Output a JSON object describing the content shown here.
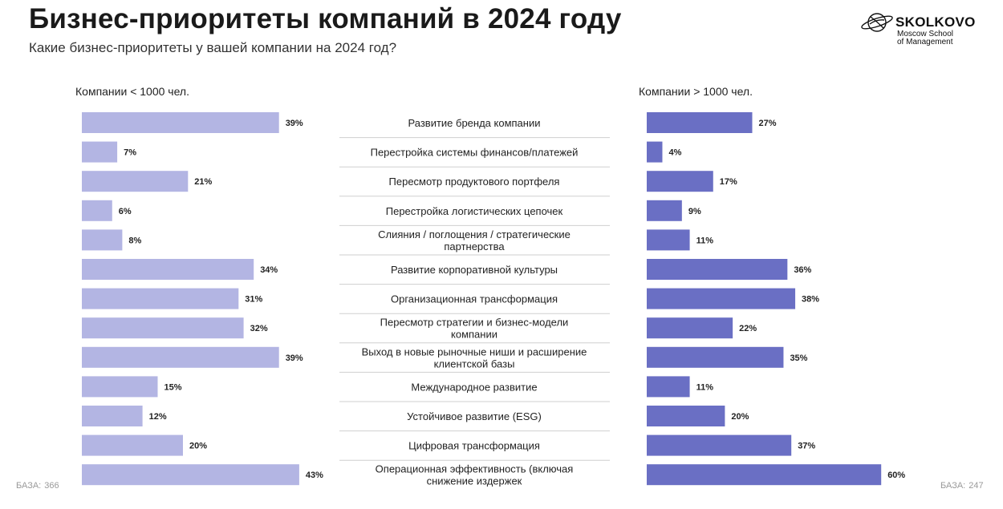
{
  "header": {
    "title": "Бизнес-приоритеты компаний в 2024 году",
    "subtitle": "Какие бизнес-приоритеты у вашей компании на 2024 год?"
  },
  "logo": {
    "name": "SKOLKOVO",
    "line1": "Moscow School",
    "line2": "of Management"
  },
  "footer": {
    "left_label": "БАЗА:",
    "left_value": "366",
    "right_label": "БАЗА:",
    "right_value": "247"
  },
  "colors": {
    "left_bar": "#b3b5e3",
    "right_bar": "#6a6fc4",
    "divider": "#cfcfcf"
  },
  "chart_data": {
    "type": "bar",
    "title": "Бизнес-приоритеты компаний в 2024 году",
    "orientation": "horizontal",
    "value_suffix": "%",
    "categories": [
      "Развитие бренда компании",
      "Перестройка системы финансов/платежей",
      "Пересмотр продуктового портфеля",
      "Перестройка логистических цепочек",
      "Слияния / поглощения / стратегические партнерства",
      "Развитие корпоративной культуры",
      "Организационная трансформация",
      "Пересмотр стратегии и бизнес-модели компании",
      "Выход в новые рыночные ниши и расширение клиентской базы",
      "Международное развитие",
      "Устойчивое развитие (ESG)",
      "Цифровая трансформация",
      "Операционная эффективность (включая снижение издержек"
    ],
    "category_lines": [
      [
        "Развитие бренда компании"
      ],
      [
        "Перестройка системы финансов/платежей"
      ],
      [
        "Пересмотр продуктового портфеля"
      ],
      [
        "Перестройка логистических цепочек"
      ],
      [
        "Слияния / поглощения / стратегические",
        "партнерства"
      ],
      [
        "Развитие корпоративной культуры"
      ],
      [
        "Организационная трансформация"
      ],
      [
        "Пересмотр стратегии и бизнес-модели",
        "компании"
      ],
      [
        "Выход в новые рыночные ниши и расширение",
        "клиентской базы"
      ],
      [
        "Международное развитие"
      ],
      [
        "Устойчивое развитие (ESG)"
      ],
      [
        "Цифровая трансформация"
      ],
      [
        "Операционная эффективность (включая",
        "снижение издержек"
      ]
    ],
    "series": [
      {
        "name": "Компании < 1000 чел.",
        "values": [
          39,
          7,
          21,
          6,
          8,
          34,
          31,
          32,
          39,
          15,
          12,
          20,
          43
        ]
      },
      {
        "name": "Компании > 1000 чел.",
        "values": [
          27,
          4,
          17,
          9,
          11,
          36,
          38,
          22,
          35,
          11,
          20,
          37,
          60
        ]
      }
    ]
  }
}
